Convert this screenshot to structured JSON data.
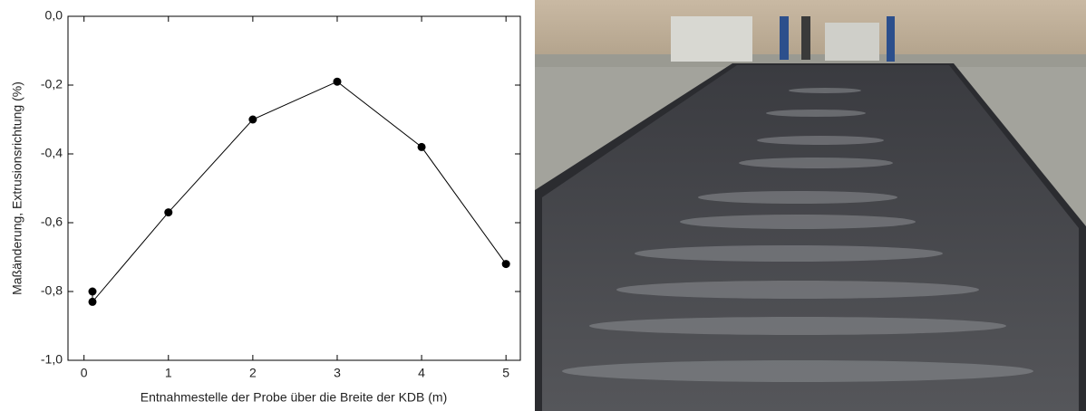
{
  "chart_data": {
    "type": "line",
    "xlabel": "Entnahmestelle der Probe über die Breite der KDB (m)",
    "ylabel": "Maßänderung, Extrusionsrichtung (%)",
    "x": [
      0.1,
      0.1,
      1,
      2,
      3,
      4,
      5
    ],
    "series": [
      {
        "color": "#000000",
        "values": [
          -0.8,
          -0.83,
          -0.57,
          -0.3,
          -0.19,
          -0.38,
          -0.72
        ]
      }
    ],
    "xlim": [
      -0.19,
      5.17
    ],
    "xticks": [
      0,
      1,
      2,
      3,
      4,
      5
    ],
    "ylim": [
      -1,
      0
    ],
    "yticks": [
      {
        "value": -1,
        "label": "-1,0"
      },
      {
        "value": -0.8,
        "label": "-0,8"
      },
      {
        "value": -0.6,
        "label": "-0,6"
      },
      {
        "value": -0.4,
        "label": "-0,4"
      },
      {
        "value": -0.2,
        "label": "-0,2"
      },
      {
        "value": 0,
        "label": "0,0"
      }
    ]
  }
}
